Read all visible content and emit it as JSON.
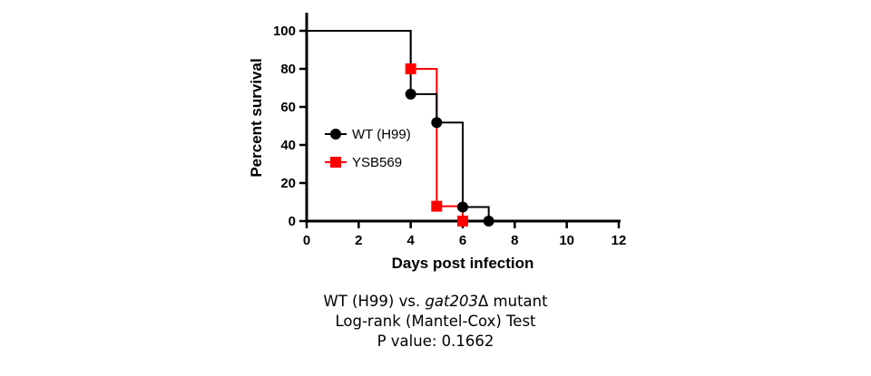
{
  "chart_data": {
    "type": "line",
    "step": true,
    "xlabel": "Days post infection",
    "ylabel": "Percent survival",
    "xlim": [
      0,
      12
    ],
    "ylim": [
      0,
      100
    ],
    "xticks": [
      0,
      2,
      4,
      6,
      8,
      10,
      12
    ],
    "yticks": [
      0,
      20,
      40,
      60,
      80,
      100
    ],
    "grid": false,
    "legend_position": "center-left",
    "series": [
      {
        "name": "WT (H99)",
        "color": "#000000",
        "marker": "circle",
        "points": [
          [
            0,
            100
          ],
          [
            4,
            100
          ],
          [
            4,
            66.7
          ],
          [
            5,
            66.7
          ],
          [
            5,
            51.8
          ],
          [
            6,
            51.8
          ],
          [
            6,
            7.4
          ],
          [
            7,
            7.4
          ],
          [
            7,
            0
          ],
          [
            8,
            0
          ]
        ],
        "markers": [
          [
            4,
            66.7
          ],
          [
            5,
            51.8
          ],
          [
            6,
            7.4
          ],
          [
            7,
            0
          ]
        ]
      },
      {
        "name": "YSB569",
        "color": "#ff0000",
        "marker": "square",
        "points": [
          [
            4,
            100
          ],
          [
            4,
            80
          ],
          [
            5,
            80
          ],
          [
            5,
            7.8
          ],
          [
            6,
            7.8
          ],
          [
            6,
            0
          ]
        ],
        "markers": [
          [
            4,
            80
          ],
          [
            5,
            7.8
          ],
          [
            6,
            0
          ]
        ]
      }
    ]
  },
  "caption": {
    "line1_prefix": "WT (H99) vs. ",
    "line1_gene": "gat203",
    "line1_suffix": "Δ mutant",
    "line2": "Log-rank (Mantel-Cox) Test",
    "line3": "P value: 0.1662"
  }
}
